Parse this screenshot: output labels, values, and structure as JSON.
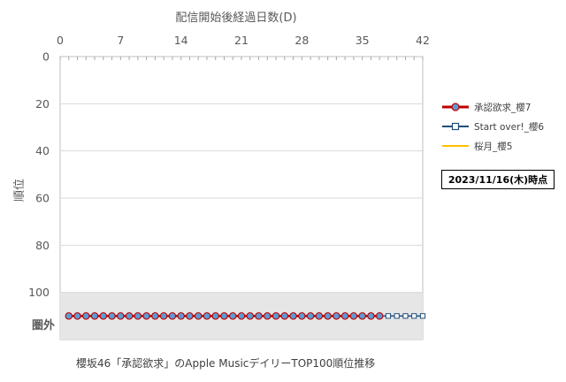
{
  "chart_data": {
    "type": "line",
    "xlabel": "配信開始後経過日数(D)",
    "ylabel": "順位",
    "x_ticks": [
      "0",
      "7",
      "14",
      "21",
      "28",
      "35",
      "42"
    ],
    "y_ticks": [
      "0",
      "20",
      "40",
      "60",
      "80",
      "100"
    ],
    "out_label": "圏外",
    "xlim": [
      0,
      42
    ],
    "ylim": [
      0,
      120
    ],
    "x_axis_position": "top",
    "y_reversed": true,
    "out_of_chart_band": [
      100,
      120
    ],
    "out_of_chart_rank": 110,
    "grid": "horizontal",
    "series": [
      {
        "name": "承認欲求_櫻7",
        "color": "#c00000",
        "marker_fill": "#5b9bd5",
        "x_start": 1,
        "x_end": 37,
        "rank": "圏外"
      },
      {
        "name": "Start over!_櫻6",
        "color": "#1f4e79",
        "marker_fill": "#ffffff",
        "x_start": 1,
        "x_end": 42,
        "rank": "圏外"
      },
      {
        "name": "桜月_櫻5",
        "color": "#ffc000",
        "x_start": 0,
        "x_end": 0,
        "rank": "圏外"
      }
    ],
    "annotation": "2023/11/16(木)時点",
    "caption": "櫻坂46「承認欲求」のApple MusicデイリーTOP100順位推移"
  }
}
